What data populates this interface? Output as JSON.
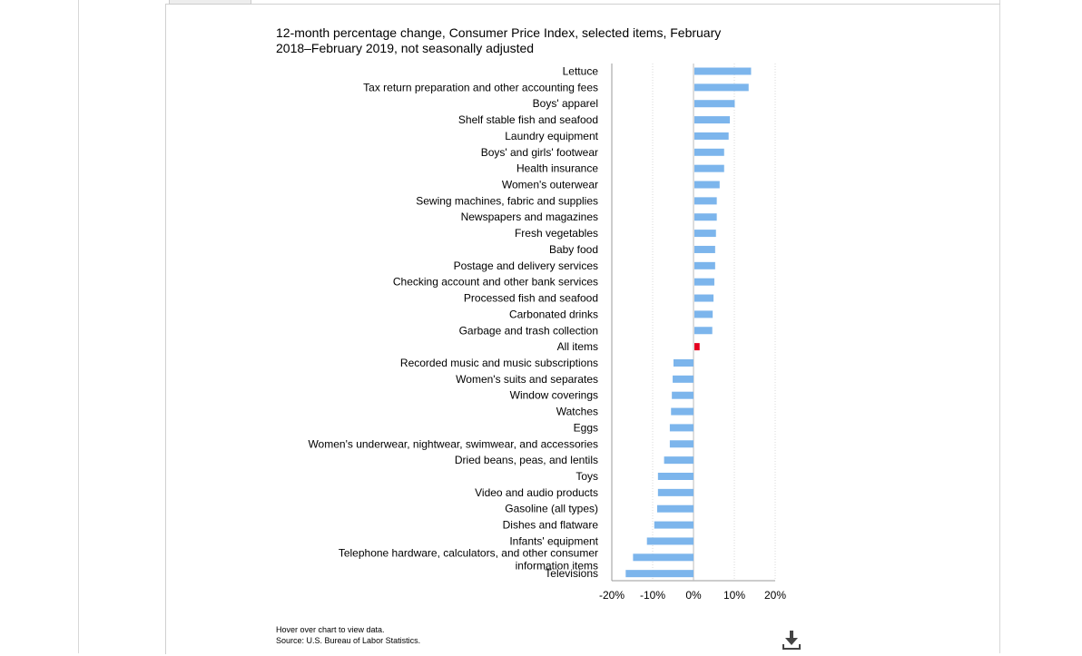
{
  "chart_data": {
    "type": "bar",
    "orientation": "horizontal",
    "title": "12-month percentage change, Consumer Price Index, selected items, February 2018–February 2019, not seasonally adjusted",
    "categories": [
      "Lettuce",
      "Tax return preparation and other accounting fees",
      "Boys' apparel",
      "Shelf stable fish and seafood",
      "Laundry equipment",
      "Boys' and girls' footwear",
      "Health insurance",
      "Women's outerwear",
      "Sewing machines, fabric and supplies",
      "Newspapers and magazines",
      "Fresh vegetables",
      "Baby food",
      "Postage and delivery services",
      "Checking account and other bank services",
      "Processed fish and seafood",
      "Carbonated drinks",
      "Garbage and trash collection",
      "All items",
      "Recorded music and music subscriptions",
      "Women's suits and separates",
      "Window coverings",
      "Watches",
      "Eggs",
      "Women's underwear, nightwear, swimwear, and accessories",
      "Dried beans, peas, and lentils",
      "Toys",
      "Video and audio products",
      "Gasoline (all types)",
      "Dishes and flatware",
      "Infants' equipment",
      "Telephone hardware, calculators, and other consumer information items",
      "Televisions"
    ],
    "values": [
      14.1,
      13.5,
      10.1,
      8.9,
      8.6,
      7.5,
      7.5,
      6.4,
      5.7,
      5.7,
      5.5,
      5.3,
      5.3,
      5.1,
      4.9,
      4.7,
      4.6,
      1.5,
      -4.9,
      -5.1,
      -5.3,
      -5.5,
      -5.8,
      -5.8,
      -7.2,
      -8.7,
      -8.7,
      -8.9,
      -9.6,
      -11.4,
      -14.8,
      -16.6
    ],
    "highlight_category": "All items",
    "xlim": [
      -20,
      20
    ],
    "xticks": [
      "-20%",
      "-10%",
      "0%",
      "10%",
      "20%"
    ],
    "xtick_values": [
      -20,
      -10,
      0,
      10,
      20
    ],
    "xlabel": "",
    "ylabel": "",
    "grid": "vertical dotted",
    "legend": "none",
    "colors": {
      "bar": "#7cb5ec",
      "highlight": "#e5001f",
      "axis": "#999999",
      "grid": "#d9d9d9"
    }
  },
  "footer": {
    "hover_note": "Hover over chart to view data.",
    "source": "Source: U.S. Bureau of Labor Statistics."
  },
  "icons": {
    "download": "download-icon"
  }
}
